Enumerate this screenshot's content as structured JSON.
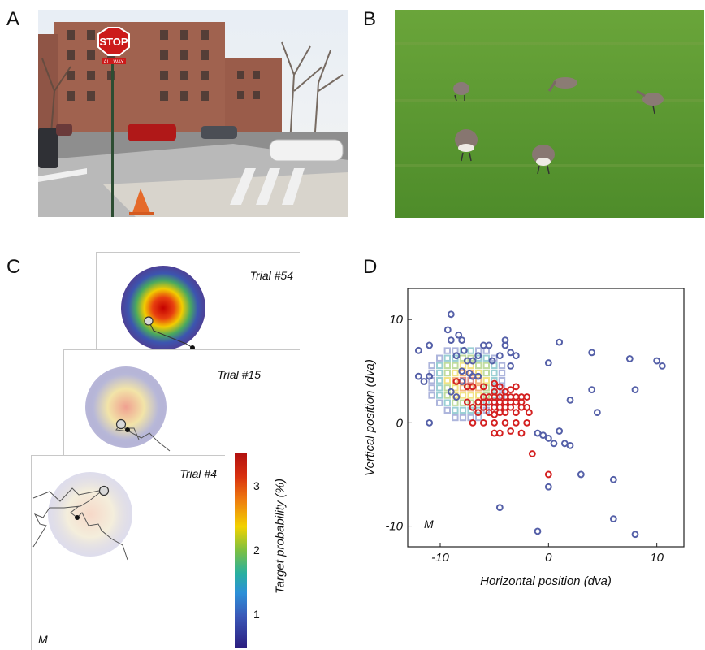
{
  "panels": {
    "a": {
      "letter": "A",
      "sign_text": "STOP",
      "sign_sub": "ALL WAY"
    },
    "b": {
      "letter": "B"
    },
    "c": {
      "letter": "C",
      "trials": [
        "Trial #54",
        "Trial #15",
        "Trial #4"
      ],
      "m_label": "M",
      "colorbar": {
        "label": "Target probability (%)",
        "ticks": [
          "3",
          "2",
          "1"
        ]
      }
    },
    "d": {
      "letter": "D"
    }
  },
  "chart_data": {
    "type": "scatter",
    "xlabel": "Horizontal position (dva)",
    "ylabel": "Vertical position (dva)",
    "xlim": [
      -13,
      12.5
    ],
    "ylim": [
      -12,
      13
    ],
    "xticks": [
      -10,
      0,
      10
    ],
    "yticks": [
      10,
      0,
      -10
    ],
    "xtick_labels": [
      "-10",
      "0",
      "10"
    ],
    "ytick_labels": [
      "10",
      "0",
      "-10"
    ],
    "annotation": "M",
    "colors": {
      "blue": "#5560a8",
      "red": "#d42020"
    },
    "series": [
      {
        "color": "blue",
        "points": [
          [
            -12,
            7
          ],
          [
            -11,
            7.5
          ],
          [
            -12,
            4.5
          ],
          [
            -11,
            4.5
          ],
          [
            -11.5,
            4
          ],
          [
            -11,
            0
          ],
          [
            -9,
            10.5
          ],
          [
            -9.3,
            9
          ],
          [
            -9,
            8
          ],
          [
            -8.3,
            8.5
          ],
          [
            -8,
            8
          ],
          [
            -7.8,
            7
          ],
          [
            -8.5,
            6.5
          ],
          [
            -7.5,
            6
          ],
          [
            -7,
            6
          ],
          [
            -6.5,
            6.5
          ],
          [
            -6,
            7.5
          ],
          [
            -5.5,
            7.5
          ],
          [
            -5.2,
            6
          ],
          [
            -4.5,
            6.5
          ],
          [
            -4,
            8
          ],
          [
            -4,
            7.5
          ],
          [
            -3.5,
            6.8
          ],
          [
            -3,
            6.5
          ],
          [
            -3.5,
            5.5
          ],
          [
            -8,
            5
          ],
          [
            -7.3,
            4.8
          ],
          [
            -7,
            4.5
          ],
          [
            -6.5,
            4.5
          ],
          [
            -8,
            4
          ],
          [
            -7.5,
            3.5
          ],
          [
            -9,
            3
          ],
          [
            -8.5,
            2.5
          ],
          [
            1,
            7.8
          ],
          [
            0,
            5.8
          ],
          [
            4,
            6.8
          ],
          [
            7.5,
            6.2
          ],
          [
            10,
            6
          ],
          [
            10.5,
            5.5
          ],
          [
            2,
            2.2
          ],
          [
            4,
            3.2
          ],
          [
            8,
            3.2
          ],
          [
            4.5,
            1
          ],
          [
            -1,
            -1
          ],
          [
            -0.5,
            -1.2
          ],
          [
            0,
            -1.5
          ],
          [
            0.5,
            -2
          ],
          [
            1,
            -0.8
          ],
          [
            1.5,
            -2
          ],
          [
            2,
            -2.2
          ],
          [
            0,
            -6.2
          ],
          [
            -4.5,
            -8.2
          ],
          [
            -1,
            -10.5
          ],
          [
            3,
            -5
          ],
          [
            6,
            -5.5
          ],
          [
            6,
            -9.3
          ],
          [
            8,
            -10.8
          ]
        ]
      },
      {
        "color": "red",
        "points": [
          [
            -8.5,
            4
          ],
          [
            -7.5,
            3.5
          ],
          [
            -7,
            3.5
          ],
          [
            -6,
            3.5
          ],
          [
            -5,
            3
          ],
          [
            -4.5,
            3.5
          ],
          [
            -4,
            3
          ],
          [
            -3.5,
            3.2
          ],
          [
            -6,
            2.5
          ],
          [
            -5.5,
            2.5
          ],
          [
            -5,
            2.5
          ],
          [
            -4.5,
            2.5
          ],
          [
            -4,
            2.5
          ],
          [
            -3.5,
            2.5
          ],
          [
            -3,
            2.5
          ],
          [
            -2.5,
            2.5
          ],
          [
            -2,
            2.5
          ],
          [
            -7.5,
            2
          ],
          [
            -6.5,
            2
          ],
          [
            -6,
            2
          ],
          [
            -5.5,
            2
          ],
          [
            -5,
            2
          ],
          [
            -4.5,
            2
          ],
          [
            -4,
            2
          ],
          [
            -3.5,
            2
          ],
          [
            -3,
            2
          ],
          [
            -2.5,
            2
          ],
          [
            -7,
            1.5
          ],
          [
            -6,
            1.5
          ],
          [
            -5,
            1.5
          ],
          [
            -4.5,
            1.5
          ],
          [
            -4,
            1.5
          ],
          [
            -3.5,
            1.5
          ],
          [
            -2.5,
            1.5
          ],
          [
            -2,
            1.5
          ],
          [
            -1.8,
            1
          ],
          [
            -6.5,
            1
          ],
          [
            -5.5,
            1
          ],
          [
            -5,
            0.8
          ],
          [
            -4.5,
            1
          ],
          [
            -4,
            1
          ],
          [
            -3,
            1
          ],
          [
            -7,
            0
          ],
          [
            -6,
            0
          ],
          [
            -5,
            0
          ],
          [
            -4,
            0
          ],
          [
            -3,
            0
          ],
          [
            -2,
            0
          ],
          [
            -5,
            -1
          ],
          [
            -4.5,
            -1
          ],
          [
            -3.5,
            -0.8
          ],
          [
            -2.5,
            -1
          ],
          [
            -1.5,
            -3
          ],
          [
            0,
            -5
          ],
          [
            -3,
            3.5
          ],
          [
            -5,
            3.8
          ]
        ]
      }
    ]
  }
}
